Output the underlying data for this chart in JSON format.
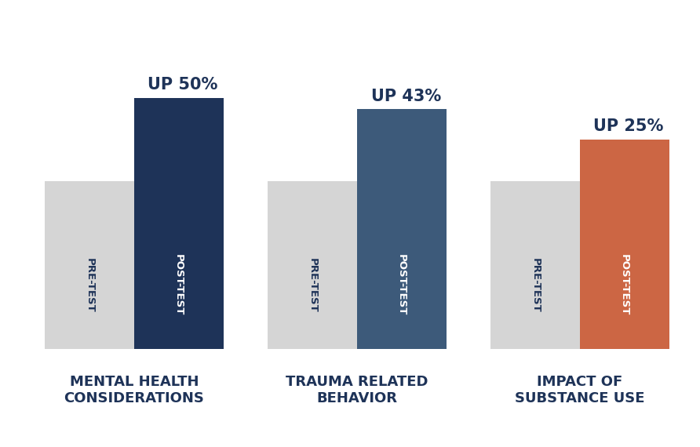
{
  "groups": [
    {
      "label": "MENTAL HEALTH\nCONSIDERATIONS",
      "up_text": "UP 50%",
      "pre_val": 4.0,
      "post_val": 6.0,
      "post_color": "#1e3358",
      "pre_text_color": "#1e3358",
      "post_text_color": "#ffffff"
    },
    {
      "label": "TRAUMA RELATED\nBEHAVIOR",
      "up_text": "UP 43%",
      "pre_val": 4.0,
      "post_val": 5.72,
      "post_color": "#3d5a7a",
      "pre_text_color": "#1e3358",
      "post_text_color": "#ffffff"
    },
    {
      "label": "IMPACT OF\nSUBSTANCE USE",
      "up_text": "UP 25%",
      "pre_val": 4.0,
      "post_val": 5.0,
      "post_color": "#cc6644",
      "pre_text_color": "#1e3358",
      "post_text_color": "#ffffff"
    }
  ],
  "pre_color": "#d5d5d5",
  "bar_width": 0.42,
  "label_fontsize": 13,
  "up_fontsize": 15,
  "bar_label_fontsize": 9.5,
  "background_color": "#ffffff",
  "ylim": [
    0,
    7.8
  ],
  "label_color": "#1e3358"
}
